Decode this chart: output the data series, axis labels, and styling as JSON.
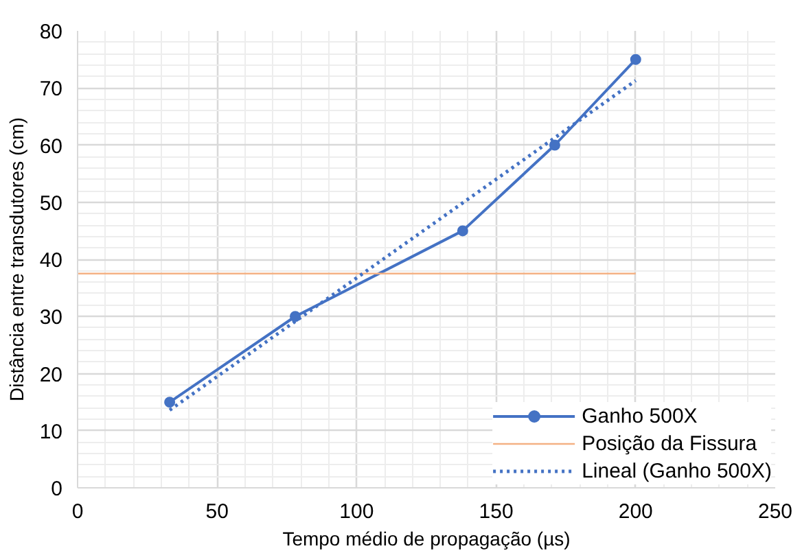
{
  "chart_data": {
    "type": "line",
    "xlabel": "Tempo médio de propagação (µs)",
    "ylabel": "Distância entre transdutores (cm)",
    "xlim": [
      0,
      250
    ],
    "ylim": [
      0,
      80
    ],
    "xticks": [
      0,
      50,
      100,
      150,
      200,
      250
    ],
    "yticks": [
      0,
      10,
      20,
      30,
      40,
      50,
      60,
      70,
      80
    ],
    "grid": true,
    "legend": "bottom right",
    "series": [
      {
        "name": "Ganho 500X",
        "color": "#4472c4",
        "marker": "circle",
        "line_style": "solid",
        "x": [
          33,
          78,
          138,
          171,
          200
        ],
        "values": [
          15,
          30,
          45,
          60,
          75
        ]
      },
      {
        "name": "Posição da Fissura",
        "color": "#f4b183",
        "marker": "none",
        "line_style": "solid",
        "x": [
          0,
          200
        ],
        "values": [
          37.5,
          37.5
        ]
      },
      {
        "name": "Lineal (Ganho 500X)",
        "color": "#4472c4",
        "marker": "none",
        "line_style": "dotted",
        "x": [
          33,
          200
        ],
        "values": [
          13.6,
          71.3
        ]
      }
    ]
  }
}
